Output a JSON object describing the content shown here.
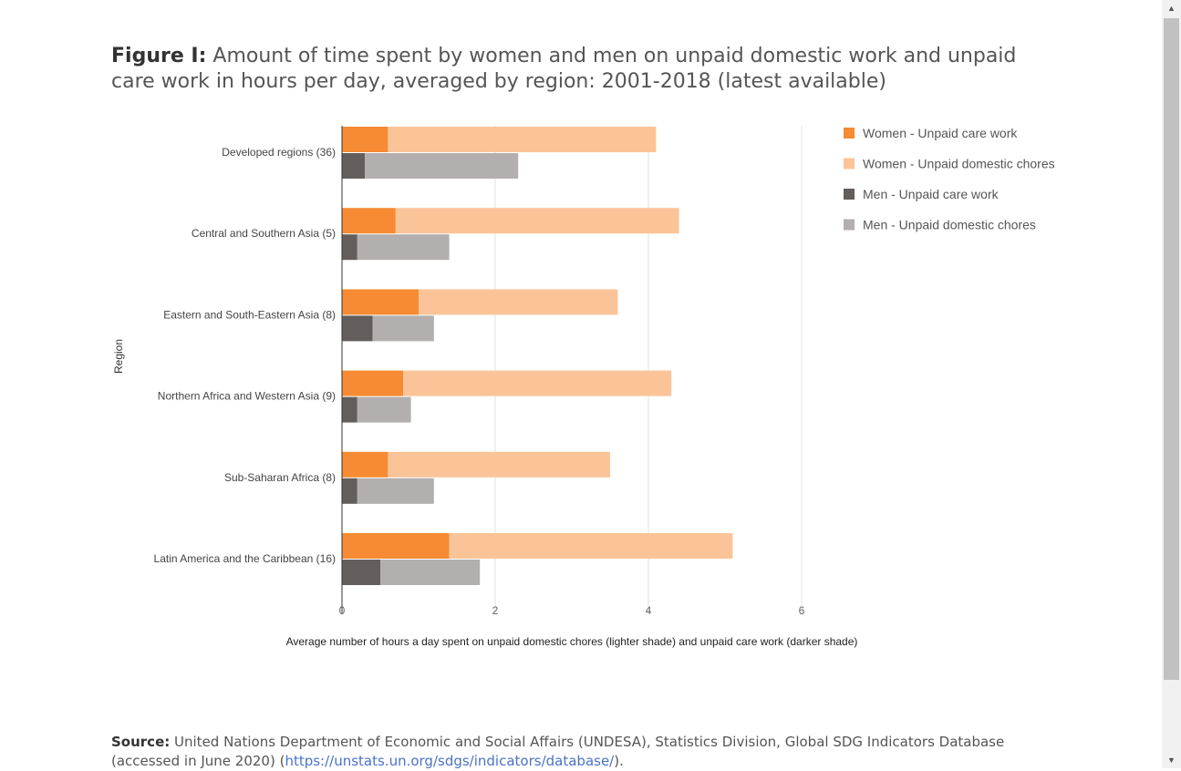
{
  "figure": {
    "title_lead": "Figure I:",
    "title_text": " Amount of time spent by women and men on unpaid domestic work and unpaid care work in hours per day, averaged by region: 2001-2018 (latest available)"
  },
  "source": {
    "lead": "Source:",
    "text": " United Nations Department of Economic and Social Affairs (UNDESA), Statistics Division, Global SDG Indicators Database (accessed in June 2020) (",
    "link": "https://unstats.un.org/sdgs/indicators/database/",
    "tail": ")."
  },
  "chart_data": {
    "type": "bar",
    "orientation": "horizontal",
    "stacked": true,
    "categories": [
      "Developed regions (36)",
      "Central and Southern Asia (5)",
      "Eastern and South-Eastern Asia (8)",
      "Northern Africa and Western Asia (9)",
      "Sub-Saharan Africa (8)",
      "Latin America and the Caribbean (16)"
    ],
    "series": [
      {
        "name": "Women - Unpaid care work",
        "group": "Women",
        "color": "#f68b33",
        "values": [
          0.6,
          0.7,
          1.0,
          0.8,
          0.6,
          1.4
        ]
      },
      {
        "name": "Women - Unpaid domestic chores",
        "group": "Women",
        "color": "#fbc498",
        "values": [
          3.5,
          3.7,
          2.6,
          3.5,
          2.9,
          3.7
        ]
      },
      {
        "name": "Men - Unpaid care work",
        "group": "Men",
        "color": "#635e5c",
        "values": [
          0.3,
          0.2,
          0.4,
          0.2,
          0.2,
          0.5
        ]
      },
      {
        "name": "Men - Unpaid domestic chores",
        "group": "Men",
        "color": "#b2afae",
        "values": [
          2.0,
          1.2,
          0.8,
          0.7,
          1.0,
          1.3
        ]
      }
    ],
    "xlabel": "Average number of hours a day spent on unpaid domestic chores (lighter shade) and unpaid care work (darker shade)",
    "ylabel": "Region",
    "xlim": [
      0,
      6
    ],
    "xticks": [
      0,
      2,
      4,
      6
    ],
    "grid": true,
    "legend_position": "right"
  }
}
